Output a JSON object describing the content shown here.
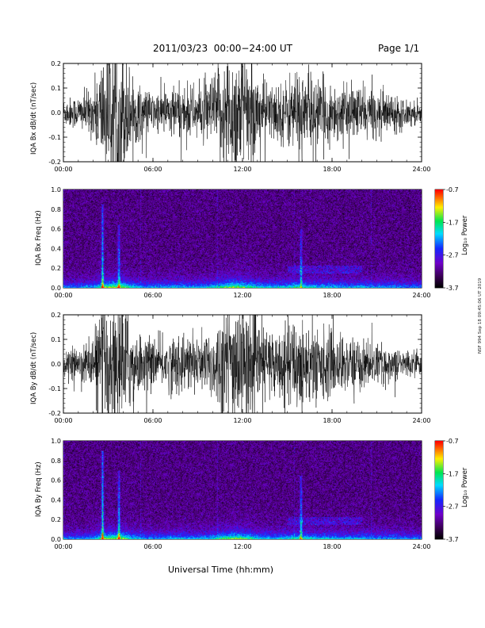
{
  "header": {
    "title": "2011/03/23  00:00−24:00 UT",
    "page": "Page 1/1"
  },
  "footer": {
    "xlabel": "Universal Time (hh:mm)"
  },
  "credit": "NSF 994 Sep 18 09:45:06 UT 2019",
  "chart_data": [
    {
      "type": "line",
      "title": "",
      "ylabel": "IQA Bx dB/dt (nT/sec)",
      "xlabel": "",
      "x_ticks": [
        "00:00",
        "06:00",
        "12:00",
        "18:00",
        "24:00"
      ],
      "xlim": [
        0,
        24
      ],
      "ylim": [
        -0.2,
        0.2
      ],
      "y_ticks": [
        "-0.2",
        "-0.1",
        "0.0",
        "0.1",
        "0.2"
      ],
      "envelope": {
        "hours": [
          0,
          1,
          2,
          2.5,
          3,
          3.5,
          4,
          4.5,
          5,
          6,
          7,
          8,
          9,
          10,
          10.5,
          11,
          11.5,
          12,
          12.5,
          13,
          14,
          15,
          15.5,
          16,
          16.5,
          17,
          18,
          19,
          20,
          21,
          22,
          23,
          24
        ],
        "amplitude": [
          0.05,
          0.06,
          0.09,
          0.2,
          0.25,
          0.25,
          0.25,
          0.15,
          0.1,
          0.07,
          0.09,
          0.1,
          0.09,
          0.13,
          0.18,
          0.22,
          0.25,
          0.22,
          0.18,
          0.14,
          0.1,
          0.12,
          0.17,
          0.15,
          0.14,
          0.12,
          0.11,
          0.09,
          0.1,
          0.08,
          0.07,
          0.05,
          0.04
        ]
      }
    },
    {
      "type": "heatmap",
      "title": "",
      "ylabel": "IQA Bx Freq (Hz)",
      "xlabel": "",
      "x_ticks": [
        "00:00",
        "06:00",
        "12:00",
        "18:00",
        "24:00"
      ],
      "xlim": [
        0,
        24
      ],
      "ylim": [
        0,
        1
      ],
      "y_ticks": [
        "0.0",
        "0.2",
        "0.4",
        "0.6",
        "0.8",
        "1.0"
      ],
      "colorbar": {
        "label": "Log₁₀ Power",
        "ticks": [
          "-0.7",
          "-1.7",
          "-2.7",
          "-3.7"
        ],
        "range": [
          -3.7,
          -0.7
        ]
      },
      "features": [
        {
          "hour": 2.6,
          "max_freq": 0.85,
          "intensity": 0.55
        },
        {
          "hour": 3.7,
          "max_freq": 0.65,
          "intensity": 0.45
        },
        {
          "hour": 15.9,
          "max_freq": 0.6,
          "intensity": 0.45
        }
      ]
    },
    {
      "type": "line",
      "title": "",
      "ylabel": "IQA By dB/dt (nT/sec)",
      "xlabel": "",
      "x_ticks": [
        "00:00",
        "06:00",
        "12:00",
        "18:00",
        "24:00"
      ],
      "xlim": [
        0,
        24
      ],
      "ylim": [
        -0.2,
        0.2
      ],
      "y_ticks": [
        "-0.2",
        "-0.1",
        "0.0",
        "0.1",
        "0.2"
      ],
      "envelope": {
        "hours": [
          0,
          1,
          2,
          2.5,
          3,
          3.5,
          4,
          4.5,
          5,
          6,
          7,
          8,
          9,
          10,
          10.5,
          11,
          11.5,
          12,
          12.5,
          13,
          14,
          15,
          15.5,
          16,
          16.5,
          17,
          18,
          19,
          20,
          21,
          22,
          23,
          24
        ],
        "amplitude": [
          0.04,
          0.06,
          0.1,
          0.22,
          0.25,
          0.25,
          0.25,
          0.16,
          0.11,
          0.08,
          0.1,
          0.11,
          0.1,
          0.13,
          0.18,
          0.22,
          0.25,
          0.22,
          0.18,
          0.15,
          0.12,
          0.13,
          0.18,
          0.16,
          0.14,
          0.13,
          0.12,
          0.1,
          0.09,
          0.07,
          0.06,
          0.05,
          0.04
        ]
      }
    },
    {
      "type": "heatmap",
      "title": "",
      "ylabel": "IQA By Freq (Hz)",
      "xlabel": "",
      "x_ticks": [
        "00:00",
        "06:00",
        "12:00",
        "18:00",
        "24:00"
      ],
      "xlim": [
        0,
        24
      ],
      "ylim": [
        0,
        1
      ],
      "y_ticks": [
        "0.0",
        "0.2",
        "0.4",
        "0.6",
        "0.8",
        "1.0"
      ],
      "colorbar": {
        "label": "Log₁₀ Power",
        "ticks": [
          "-0.7",
          "-1.7",
          "-2.7",
          "-3.7"
        ],
        "range": [
          -3.7,
          -0.7
        ]
      },
      "features": [
        {
          "hour": 2.6,
          "max_freq": 0.9,
          "intensity": 0.6
        },
        {
          "hour": 3.7,
          "max_freq": 0.7,
          "intensity": 0.5
        },
        {
          "hour": 15.9,
          "max_freq": 0.65,
          "intensity": 0.5
        }
      ]
    }
  ]
}
